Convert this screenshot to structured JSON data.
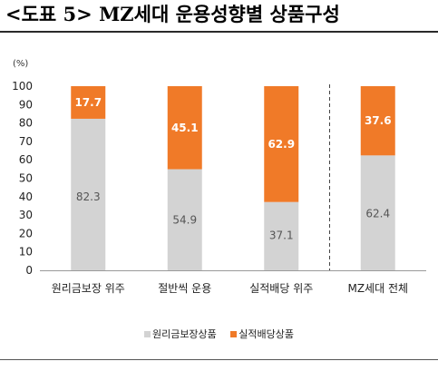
{
  "title": "<도표 5> MZ세대 운용성향별 상품구성",
  "chart_data": {
    "type": "bar",
    "stacked": true,
    "unit_label": "(%)",
    "ylim": [
      0,
      100
    ],
    "yticks": [
      0,
      10,
      20,
      30,
      40,
      50,
      60,
      70,
      80,
      90,
      100
    ],
    "categories": [
      "원리금보장 위주",
      "절반씩 운용",
      "실적배당 위주",
      "MZ세대 전체"
    ],
    "series": [
      {
        "name": "원리금보장상품",
        "color": "#d3d3d3",
        "label_color": "#555555",
        "values": [
          82.3,
          54.9,
          37.1,
          62.4
        ]
      },
      {
        "name": "실적배당상품",
        "color": "#f07a28",
        "label_color": "#ffffff",
        "values": [
          17.7,
          45.1,
          62.9,
          37.6
        ]
      }
    ],
    "value_labels": [
      [
        "82.3",
        "54.9",
        "37.1",
        "62.4"
      ],
      [
        "17.7",
        "45.1",
        "62.9",
        "37.6"
      ]
    ],
    "separator_before_category": 3,
    "legend_position": "bottom"
  }
}
